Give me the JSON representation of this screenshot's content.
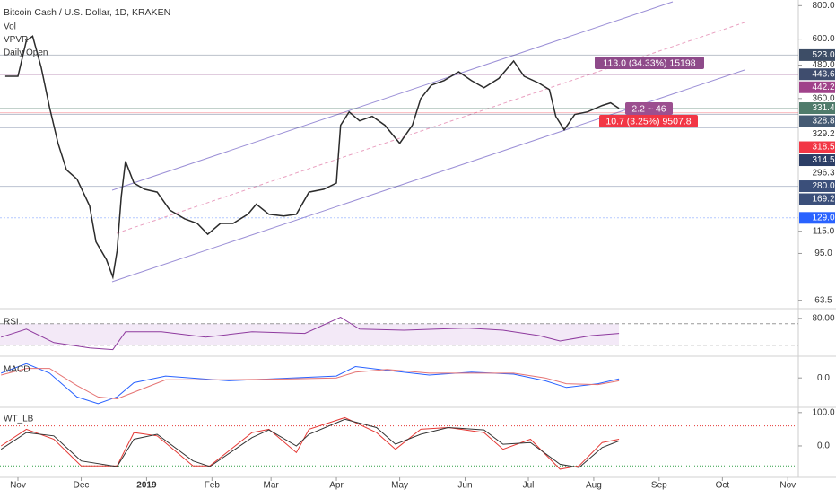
{
  "chart_data": [
    {
      "type": "line",
      "title": "Bitcoin Cash / U.S. Dollar, 1D, KRAKEN",
      "indicators": [
        "Vol",
        "VPVR",
        "Daily Open"
      ],
      "log": true,
      "color": "#2b2b2b",
      "x": [
        -6,
        0,
        4,
        7,
        11,
        15,
        19,
        23,
        28,
        34,
        37,
        42,
        45,
        47,
        49,
        51,
        55,
        60,
        66,
        72,
        79,
        85,
        90,
        96,
        102,
        109,
        113,
        119,
        126,
        132,
        138,
        145,
        151,
        153,
        157,
        162,
        168,
        174,
        181,
        187,
        191,
        196,
        202,
        209,
        215,
        221,
        228,
        235,
        240,
        247,
        252,
        255,
        259,
        264,
        270,
        277,
        281,
        285
      ],
      "values": [
        436,
        436,
        592,
        615,
        471,
        333,
        245,
        195,
        180,
        143,
        105,
        90,
        77.5,
        97,
        155,
        210,
        174,
        165,
        161,
        138,
        128,
        123,
        112,
        123,
        123,
        133,
        145,
        133,
        131,
        133,
        161,
        165,
        174,
        286,
        321,
        297,
        309,
        286,
        245,
        286,
        360,
        404,
        420,
        453,
        420,
        395,
        428,
        497,
        436,
        411,
        389,
        309,
        275,
        314,
        321,
        339,
        347,
        331
      ],
      "xlim": [
        -8.5,
        370
      ],
      "xticks": [
        {
          "value": 0,
          "label": "Nov"
        },
        {
          "value": 30,
          "label": "Dec"
        },
        {
          "value": 61,
          "label": "2019"
        },
        {
          "value": 92,
          "label": "Feb"
        },
        {
          "value": 120,
          "label": "Mar"
        },
        {
          "value": 151,
          "label": "Apr"
        },
        {
          "value": 181,
          "label": "May"
        },
        {
          "value": 212,
          "label": "Jun"
        },
        {
          "value": 242,
          "label": "Jul"
        },
        {
          "value": 273,
          "label": "Aug"
        },
        {
          "value": 304,
          "label": "Sep"
        },
        {
          "value": 334,
          "label": "Oct"
        },
        {
          "value": 365,
          "label": "Nov"
        }
      ],
      "ylim": [
        60,
        840
      ],
      "yticks": [
        {
          "value": 800,
          "label": "800.0"
        },
        {
          "value": 600,
          "label": "600.0"
        },
        {
          "value": 480,
          "label": "480.0"
        },
        {
          "value": 360,
          "label": "360.0"
        },
        {
          "value": 115,
          "label": "115.0"
        },
        {
          "value": 95,
          "label": "95.0"
        },
        {
          "value": 63.5,
          "label": "63.5"
        }
      ],
      "price_tags": [
        {
          "value": 523,
          "label": "523.0",
          "color": "#3d4d66"
        },
        {
          "value": 443.6,
          "label": "443.6",
          "color": "#3f4d6e"
        },
        {
          "value": 442.2,
          "label": "442.2",
          "color": "#a0428a"
        },
        {
          "value": 331.4,
          "label": "331.4",
          "color": "#4f7b6b"
        },
        {
          "value": 328.8,
          "label": "328.8",
          "color": "#455a73"
        },
        {
          "value": 329.2,
          "label": "329.2"
        },
        {
          "value": 318.5,
          "label": "318.5",
          "color": "#f23645"
        },
        {
          "value": 314.5,
          "label": "314.5",
          "color": "#2c3e66"
        },
        {
          "value": 296.3,
          "label": "296.3"
        },
        {
          "value": 280,
          "label": "280.0",
          "color": "#3b4f7a"
        },
        {
          "value": 169.2,
          "label": "169.2",
          "color": "#3b4f7a"
        },
        {
          "value": 129,
          "label": "129.0",
          "color": "#2962ff"
        }
      ],
      "annotations": [
        {
          "text": "113.0 (34.33%) 15198",
          "color": "#8e4a8a"
        },
        {
          "text": "2.2 ~ 46",
          "color": "#9c4f8f"
        },
        {
          "text": "10.7 (3.25%) 9507.8",
          "color": "#f23645"
        }
      ]
    },
    {
      "type": "line",
      "title": "RSI",
      "color": "#8e3a9e",
      "x": [
        -8,
        4,
        17,
        34,
        45,
        51,
        68,
        89,
        111,
        136,
        153,
        162,
        183,
        213,
        230,
        247,
        257,
        272,
        285
      ],
      "values": [
        45,
        60,
        35,
        25,
        22,
        55,
        55,
        45,
        55,
        52,
        82,
        60,
        58,
        62,
        58,
        48,
        38,
        48,
        52
      ],
      "ylim": [
        13,
        93
      ],
      "yticks": [
        {
          "value": 80,
          "label": "80.00"
        }
      ],
      "levels": [
        70,
        30
      ]
    },
    {
      "type": "line",
      "title": "MACD",
      "x": [
        -8,
        4,
        15,
        28,
        38,
        47,
        55,
        70,
        100,
        130,
        151,
        160,
        175,
        195,
        215,
        235,
        250,
        260,
        275,
        285
      ],
      "series": [
        {
          "color": "#2962ff",
          "values": [
            5,
            15,
            5,
            -20,
            -27,
            -20,
            -5,
            2,
            -3,
            0,
            2,
            12,
            8,
            3,
            6,
            4,
            -3,
            -10,
            -6,
            -1
          ]
        },
        {
          "color": "#e57373",
          "values": [
            3,
            10,
            10,
            -8,
            -20,
            -22,
            -15,
            -2,
            -2,
            -1,
            0,
            6,
            9,
            5,
            5,
            5,
            0,
            -6,
            -7,
            -3
          ]
        }
      ],
      "ylim": [
        -30,
        20
      ],
      "yticks": [
        {
          "value": 0,
          "label": "0.0"
        }
      ]
    },
    {
      "type": "line",
      "title": "WT_LB",
      "x": [
        -8,
        4,
        17,
        30,
        47,
        55,
        66,
        83,
        91,
        111,
        119,
        132,
        138,
        155,
        170,
        179,
        191,
        204,
        221,
        230,
        243,
        257,
        266,
        277,
        285
      ],
      "series": [
        {
          "color": "#e53935",
          "values": [
            0,
            50,
            20,
            -60,
            -60,
            40,
            30,
            -60,
            -60,
            40,
            50,
            -20,
            50,
            85,
            40,
            -10,
            50,
            55,
            40,
            -10,
            20,
            -70,
            -60,
            10,
            20
          ]
        },
        {
          "color": "#333333",
          "values": [
            -10,
            40,
            30,
            -45,
            -62,
            20,
            35,
            -45,
            -62,
            25,
            48,
            0,
            35,
            80,
            55,
            5,
            35,
            55,
            48,
            5,
            10,
            -55,
            -65,
            -5,
            15
          ]
        }
      ],
      "ylim": [
        -89,
        113
      ],
      "yticks": [
        {
          "value": 100,
          "label": "100.0"
        },
        {
          "value": 0,
          "label": "0.0"
        }
      ],
      "levels": [
        60,
        -60
      ]
    }
  ]
}
